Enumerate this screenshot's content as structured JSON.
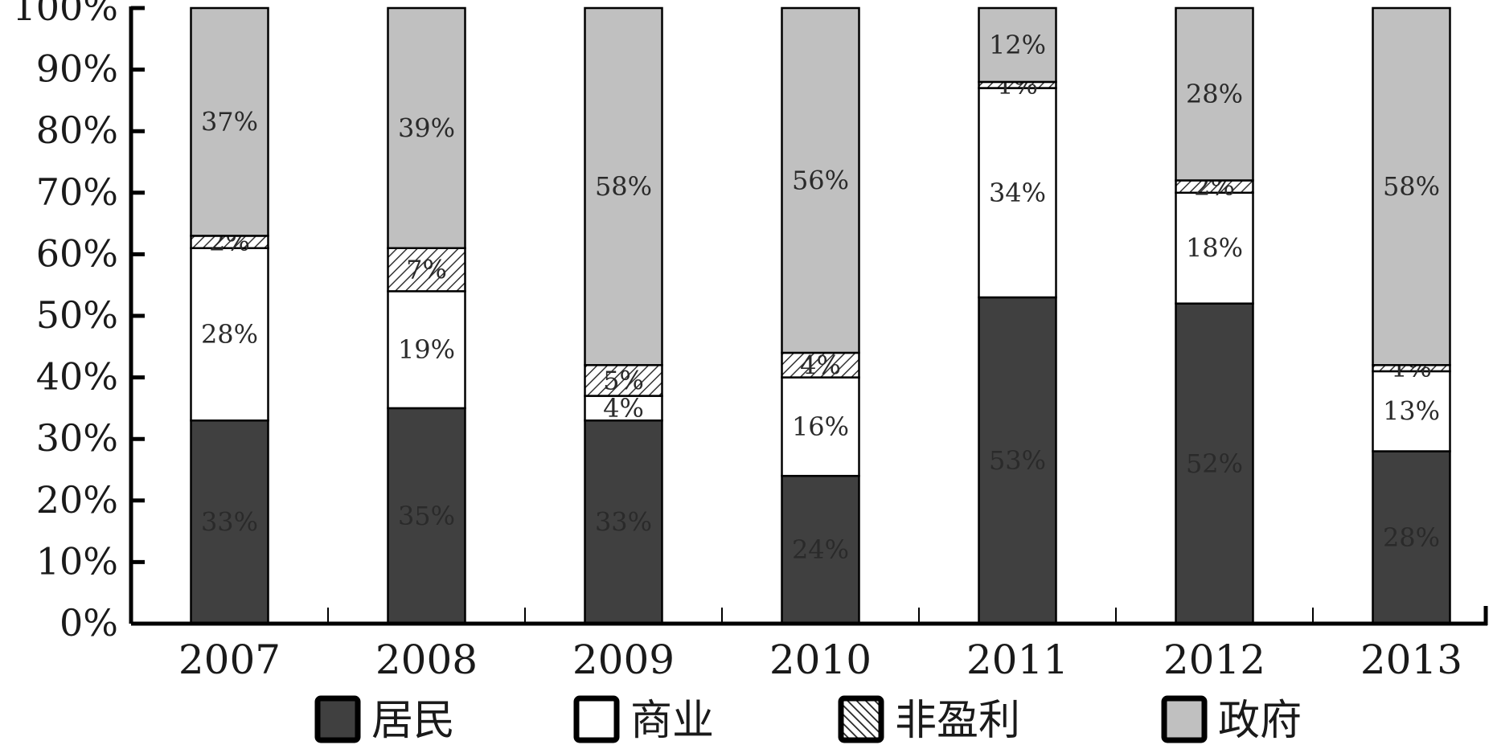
{
  "chart_data": {
    "type": "bar",
    "stacked": true,
    "categories": [
      "2007",
      "2008",
      "2009",
      "2010",
      "2011",
      "2012",
      "2013"
    ],
    "series": [
      {
        "name": "居民",
        "values": [
          33,
          35,
          33,
          24,
          53,
          52,
          28
        ],
        "color": "#404040",
        "pattern": "solid"
      },
      {
        "name": "商业",
        "values": [
          28,
          19,
          4,
          16,
          34,
          18,
          13
        ],
        "color": "#ffffff",
        "pattern": "solid"
      },
      {
        "name": "非盈利",
        "values": [
          2,
          7,
          5,
          4,
          1,
          2,
          1
        ],
        "color": "#ffffff",
        "pattern": "hatch"
      },
      {
        "name": "政府",
        "values": [
          37,
          39,
          58,
          56,
          12,
          28,
          58
        ],
        "color": "#c0c0c0",
        "pattern": "solid"
      }
    ],
    "data_labels": [
      [
        "33%",
        "28%",
        "2%",
        "37%"
      ],
      [
        "35%",
        "19%",
        "7%",
        "39%"
      ],
      [
        "33%",
        "4%",
        "5%",
        "58%"
      ],
      [
        "24%",
        "16%",
        "4%",
        "56%"
      ],
      [
        "53%",
        "34%",
        "1%",
        "12%"
      ],
      [
        "52%",
        "18%",
        "2%",
        "28%"
      ],
      [
        "28%",
        "13%",
        "1%",
        "58%"
      ]
    ],
    "yticks": [
      "0%",
      "10%",
      "20%",
      "30%",
      "40%",
      "50%",
      "60%",
      "70%",
      "80%",
      "90%",
      "100%"
    ],
    "ylim": [
      0,
      100
    ],
    "title": "",
    "xlabel": "",
    "ylabel": "",
    "legend_position": "bottom"
  }
}
